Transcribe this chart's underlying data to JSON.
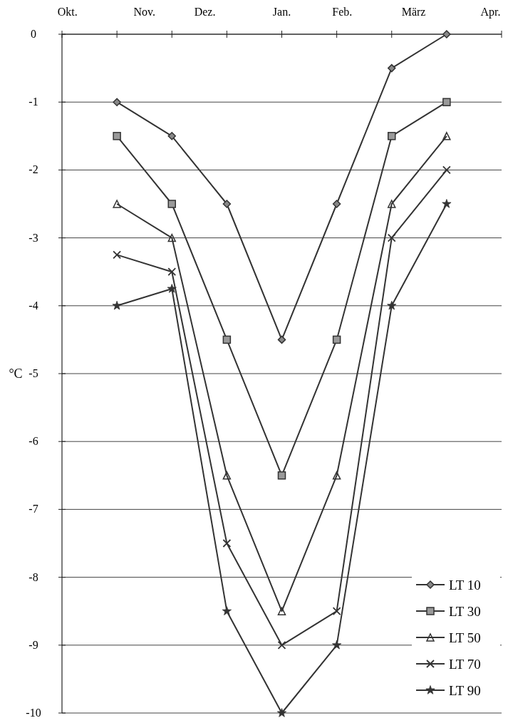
{
  "chart_data": {
    "type": "line",
    "ylabel": "°C",
    "categories": [
      null,
      null,
      null,
      null,
      null,
      null,
      null
    ],
    "annotations": [
      "Okt.",
      "Nov.",
      "Dez.",
      "Jan.",
      "Feb.",
      "März",
      "Apr."
    ],
    "ylim": [
      -10,
      0
    ],
    "yticks": [
      0,
      -1,
      -2,
      -3,
      -4,
      -5,
      -6,
      -7,
      -8,
      -9,
      -10
    ],
    "grid": "y",
    "legend": "bottom right",
    "series": [
      {
        "name": "LT 10",
        "color": "#333333",
        "marker": "diamond",
        "values": [
          -1,
          -1.5,
          -2.5,
          -4.5,
          -2.5,
          -0.5,
          0
        ]
      },
      {
        "name": "LT 30",
        "color": "#333333",
        "marker": "square",
        "values": [
          -1.5,
          -2.5,
          -4.5,
          -6.5,
          -4.5,
          -1.5,
          -1
        ]
      },
      {
        "name": "LT 50",
        "color": "#333333",
        "marker": "triangle",
        "values": [
          -2.5,
          -3,
          -6.5,
          -8.5,
          -6.5,
          -2.5,
          -1.5
        ]
      },
      {
        "name": "LT 70",
        "color": "#333333",
        "marker": "cross",
        "values": [
          -3.25,
          -3.5,
          -7.5,
          -9,
          -8.5,
          -3,
          -2
        ]
      },
      {
        "name": "LT 90",
        "color": "#333333",
        "marker": "star",
        "values": [
          -4,
          -3.75,
          -8.5,
          -10,
          -9,
          -4,
          -2.5
        ]
      }
    ]
  }
}
